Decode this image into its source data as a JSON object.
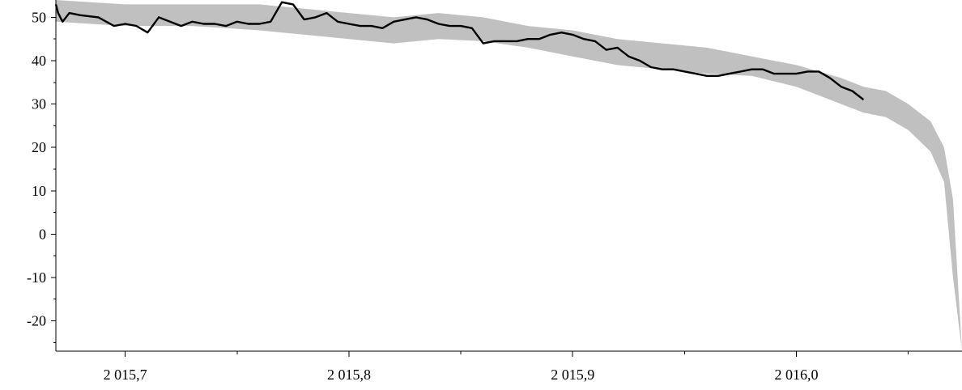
{
  "chart_data": {
    "type": "line",
    "title": "",
    "xlabel": "",
    "ylabel": "",
    "xlim": [
      2015.669,
      2016.074
    ],
    "ylim": [
      -27,
      54
    ],
    "grid": false,
    "legend": "none",
    "x_ticks": [
      {
        "value": 2015.7,
        "label": "2 015,7"
      },
      {
        "value": 2015.8,
        "label": "2 015,8"
      },
      {
        "value": 2015.9,
        "label": "2 015,9"
      },
      {
        "value": 2016.0,
        "label": "2 016,0"
      }
    ],
    "x_minor_ticks": [
      2015.75,
      2015.85,
      2015.95,
      2016.05
    ],
    "y_ticks": [
      {
        "value": 50,
        "label": "50"
      },
      {
        "value": 40,
        "label": "40"
      },
      {
        "value": 30,
        "label": "30"
      },
      {
        "value": 20,
        "label": "20"
      },
      {
        "value": 10,
        "label": "10"
      },
      {
        "value": 0,
        "label": "0"
      },
      {
        "value": -10,
        "label": "-10"
      },
      {
        "value": -20,
        "label": "-20"
      }
    ],
    "y_minor_ticks": [
      45,
      35,
      25,
      15,
      5,
      -5,
      -15,
      -25
    ],
    "colors": {
      "observed": "#000000",
      "band": "#c0c0c0"
    },
    "series": [
      {
        "kind": "band",
        "x": [
          2015.669,
          2015.7,
          2015.73,
          2015.76,
          2015.78,
          2015.8,
          2015.82,
          2015.84,
          2015.86,
          2015.88,
          2015.9,
          2015.92,
          2015.94,
          2015.96,
          2015.98,
          2016.0,
          2016.02,
          2016.03,
          2016.04,
          2016.05,
          2016.06,
          2016.066,
          2016.07,
          2016.074
        ],
        "lower": [
          49,
          48,
          48,
          47,
          46,
          45,
          44,
          45,
          44.5,
          43,
          41,
          39,
          38,
          37,
          36.5,
          34,
          30,
          28,
          27,
          24,
          19,
          12,
          -10,
          -27
        ],
        "upper": [
          54,
          53,
          53,
          53,
          52,
          51,
          50,
          51,
          50,
          48,
          47,
          45,
          44,
          43,
          41,
          39,
          36,
          34,
          33,
          30,
          26,
          20,
          8,
          -27
        ]
      },
      {
        "kind": "line",
        "x": [
          2015.669,
          2015.67,
          2015.672,
          2015.675,
          2015.68,
          2015.688,
          2015.695,
          2015.7,
          2015.705,
          2015.71,
          2015.715,
          2015.72,
          2015.725,
          2015.73,
          2015.735,
          2015.74,
          2015.745,
          2015.75,
          2015.755,
          2015.76,
          2015.765,
          2015.77,
          2015.775,
          2015.78,
          2015.785,
          2015.79,
          2015.795,
          2015.8,
          2015.805,
          2015.81,
          2015.815,
          2015.82,
          2015.825,
          2015.83,
          2015.835,
          2015.84,
          2015.845,
          2015.85,
          2015.855,
          2015.86,
          2015.865,
          2015.87,
          2015.875,
          2015.88,
          2015.885,
          2015.89,
          2015.895,
          2015.9,
          2015.905,
          2015.91,
          2015.915,
          2015.92,
          2015.925,
          2015.93,
          2015.935,
          2015.94,
          2015.945,
          2015.95,
          2015.955,
          2015.96,
          2015.965,
          2015.97,
          2015.975,
          2015.98,
          2015.985,
          2015.99,
          2015.995,
          2016.0,
          2016.005,
          2016.01,
          2016.015,
          2016.02,
          2016.025,
          2016.03
        ],
        "y": [
          53,
          51,
          49,
          51,
          50.5,
          50,
          48,
          48.5,
          48,
          46.5,
          50,
          49,
          48,
          49,
          48.5,
          48.5,
          48,
          49,
          48.5,
          48.5,
          49,
          53.5,
          53,
          49.5,
          50,
          51,
          49,
          48.5,
          48,
          48,
          47.5,
          49,
          49.5,
          50,
          49.5,
          48.5,
          48,
          48,
          47.5,
          44,
          44.5,
          44.5,
          44.5,
          45,
          45,
          46,
          46.5,
          46,
          45,
          44.5,
          42.5,
          43,
          41,
          40,
          38.5,
          38,
          38,
          37.5,
          37,
          36.5,
          36.5,
          37,
          37.5,
          38,
          38,
          37,
          37,
          37,
          37.5,
          37.5,
          36,
          34,
          33,
          31
        ]
      }
    ]
  }
}
